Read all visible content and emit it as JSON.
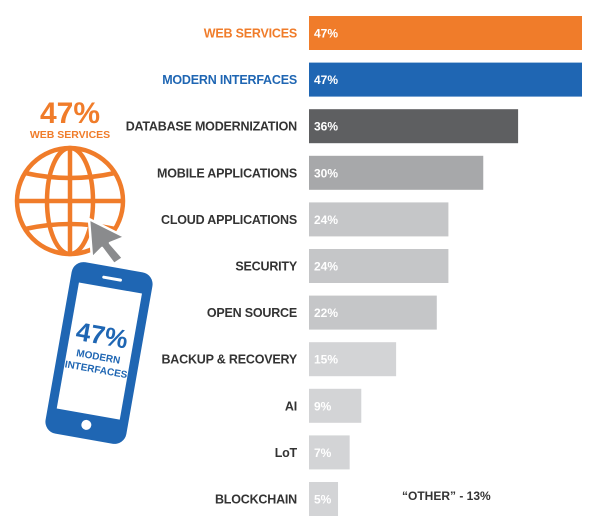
{
  "chart_data": {
    "type": "bar",
    "orientation": "horizontal",
    "categories": [
      "WEB SERVICES",
      "MODERN INTERFACES",
      "DATABASE MODERNIZATION",
      "MOBILE APPLICATIONS",
      "CLOUD APPLICATIONS",
      "SECURITY",
      "OPEN SOURCE",
      "BACKUP & RECOVERY",
      "AI",
      "LoT",
      "BLOCKCHAIN"
    ],
    "values": [
      47,
      47,
      36,
      30,
      24,
      24,
      22,
      15,
      9,
      7,
      5
    ],
    "value_labels": [
      "47%",
      "47%",
      "36%",
      "30%",
      "24%",
      "24%",
      "22%",
      "15%",
      "9%",
      "7%",
      "5%"
    ],
    "bar_colors": [
      "#f07c2a",
      "#1f66b3",
      "#5e5f61",
      "#a7a8aa",
      "#c5c6c8",
      "#c5c6c8",
      "#c5c6c8",
      "#d3d4d6",
      "#d3d4d6",
      "#d3d4d6",
      "#d3d4d6"
    ],
    "label_colors": [
      "#f07c2a",
      "#1f66b3",
      "#333333",
      "#333333",
      "#333333",
      "#333333",
      "#333333",
      "#333333",
      "#333333",
      "#333333",
      "#333333"
    ],
    "xlim": [
      0,
      47
    ],
    "grid": false,
    "legend": "none",
    "annotation": "“OTHER” - 13%"
  },
  "callouts": {
    "web": {
      "percent": "47%",
      "label": "WEB SERVICES",
      "color": "#f07c2a",
      "icon": "globe-icon"
    },
    "cursor": {
      "icon": "cursor-arrow-icon",
      "color": "#8a8b8d"
    },
    "mobile": {
      "percent": "47%",
      "label_line1": "MODERN",
      "label_line2": "INTERFACES",
      "color": "#1f66b3",
      "icon": "smartphone-icon"
    }
  }
}
